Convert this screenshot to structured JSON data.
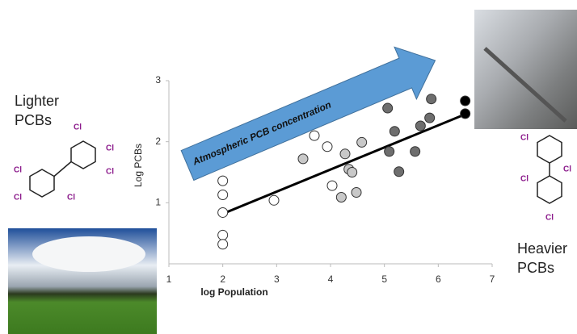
{
  "chart_data": {
    "type": "scatter",
    "xlabel": "log Population",
    "ylabel": "Log PCBs",
    "xlim": [
      1,
      7
    ],
    "xticks": [
      1,
      2,
      3,
      4,
      5,
      6,
      7
    ],
    "ylim": [
      0,
      3
    ],
    "yticks": [
      1,
      2,
      3
    ],
    "series": [
      {
        "color": "#ffffff",
        "x": [
          2,
          2,
          2,
          2,
          2,
          2.95,
          3.7,
          3.94,
          4.03
        ],
        "values": [
          1.36,
          1.13,
          0.84,
          0.47,
          0.32,
          1.04,
          2.1,
          1.92,
          1.28
        ]
      },
      {
        "color": "#c8c8c8",
        "x": [
          3.49,
          4.27,
          4.34,
          4.4,
          4.48,
          4.58,
          4.2
        ],
        "values": [
          1.72,
          1.8,
          1.55,
          1.5,
          1.17,
          1.99,
          1.09
        ]
      },
      {
        "color": "#6e6e6e",
        "x": [
          5.06,
          5.19,
          5.09,
          5.27,
          5.57,
          5.67,
          5.84,
          5.87
        ],
        "values": [
          2.55,
          2.17,
          1.84,
          1.51,
          1.84,
          2.26,
          2.39,
          2.7
        ]
      },
      {
        "color": "#000000",
        "x": [
          6.5,
          6.5
        ],
        "values": [
          2.67,
          2.46
        ]
      }
    ],
    "trendline": {
      "x": [
        2,
        6.5
      ],
      "values": [
        0.82,
        2.45
      ]
    },
    "arrow_label": "Atmospheric PCB concentration",
    "left_label": "Lighter PCBs",
    "right_label": "Heavier PCBs",
    "molecule_labels": [
      [
        "Cl",
        "Cl",
        "Cl",
        "Cl",
        "Cl",
        "Cl"
      ],
      [
        "Cl",
        "Cl",
        "Cl",
        "Cl"
      ]
    ]
  }
}
